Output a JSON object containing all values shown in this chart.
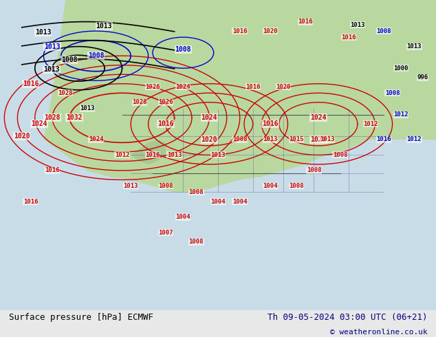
{
  "title_left": "Surface pressure [hPa] ECMWF",
  "title_right": "Th 09-05-2024 03:00 UTC (06+21)",
  "copyright": "© weatheronline.co.uk",
  "bg_color": "#e8e8e8",
  "map_bg": "#f0f0f0",
  "fig_width": 6.34,
  "fig_height": 4.9,
  "bottom_text_color": "#000080",
  "bottom_left_color": "#000000",
  "font_size_bottom": 9,
  "font_size_copyright": 8
}
